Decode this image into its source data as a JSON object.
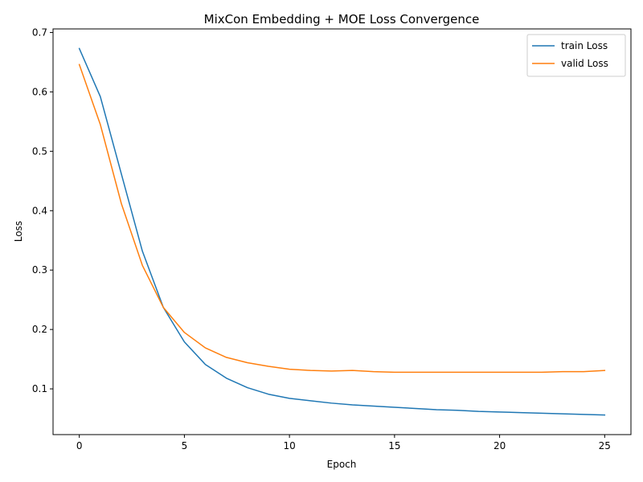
{
  "chart_data": {
    "type": "line",
    "title": "MixCon Embedding + MOE Loss Convergence",
    "xlabel": "Epoch",
    "ylabel": "Loss",
    "xlim": [
      -1.25,
      26.25
    ],
    "ylim": [
      0.023,
      0.706
    ],
    "xticks": [
      0,
      5,
      10,
      15,
      20,
      25
    ],
    "xtick_labels": [
      "0",
      "5",
      "10",
      "15",
      "20",
      "25"
    ],
    "yticks": [
      0.1,
      0.2,
      0.3,
      0.4,
      0.5,
      0.6,
      0.7
    ],
    "ytick_labels": [
      "0.1",
      "0.2",
      "0.3",
      "0.4",
      "0.5",
      "0.6",
      "0.7"
    ],
    "grid": false,
    "legend_position": "upper right",
    "x": [
      0,
      1,
      2,
      3,
      4,
      5,
      6,
      7,
      8,
      9,
      10,
      11,
      12,
      13,
      14,
      15,
      16,
      17,
      18,
      19,
      20,
      21,
      22,
      23,
      24,
      25
    ],
    "series": [
      {
        "name": "train Loss",
        "color": "#1f77b4",
        "values": [
          0.673,
          0.592,
          0.462,
          0.332,
          0.237,
          0.179,
          0.141,
          0.118,
          0.102,
          0.091,
          0.084,
          0.08,
          0.076,
          0.073,
          0.071,
          0.069,
          0.067,
          0.065,
          0.064,
          0.062,
          0.061,
          0.06,
          0.059,
          0.058,
          0.057,
          0.056
        ]
      },
      {
        "name": "valid Loss",
        "color": "#ff7f0e",
        "values": [
          0.646,
          0.545,
          0.412,
          0.308,
          0.237,
          0.195,
          0.169,
          0.153,
          0.144,
          0.138,
          0.133,
          0.131,
          0.13,
          0.131,
          0.129,
          0.128,
          0.128,
          0.128,
          0.128,
          0.128,
          0.128,
          0.128,
          0.128,
          0.129,
          0.129,
          0.131
        ]
      }
    ]
  }
}
